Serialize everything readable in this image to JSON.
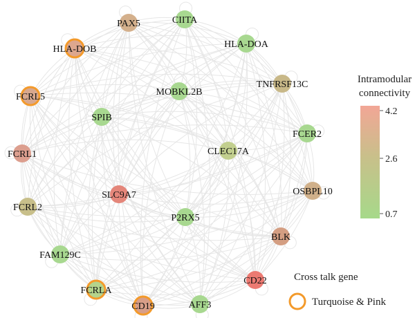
{
  "nodes": [
    {
      "id": "CIITA",
      "label": "CIITA",
      "value": 0.9,
      "cross_talk": false
    },
    {
      "id": "PAX5",
      "label": "PAX5",
      "value": 3.1,
      "cross_talk": false
    },
    {
      "id": "HLA-DOA",
      "label": "HLA-DOA",
      "value": 0.8,
      "cross_talk": false
    },
    {
      "id": "HLA-DOB",
      "label": "HLA-DOB",
      "value": 3.6,
      "cross_talk": true
    },
    {
      "id": "TNFRSF13C",
      "label": "TNFRSF13C",
      "value": 2.6,
      "cross_talk": false
    },
    {
      "id": "FCRL5",
      "label": "FCRL5",
      "value": 3.7,
      "cross_talk": true
    },
    {
      "id": "MOBKL2B",
      "label": "MOBKL2B",
      "value": 0.8,
      "cross_talk": false
    },
    {
      "id": "SPIB",
      "label": "SPIB",
      "value": 0.8,
      "cross_talk": false
    },
    {
      "id": "FCER2",
      "label": "FCER2",
      "value": 0.9,
      "cross_talk": false
    },
    {
      "id": "FCRL1",
      "label": "FCRL1",
      "value": 3.7,
      "cross_talk": false
    },
    {
      "id": "CLEC17A",
      "label": "CLEC17A",
      "value": 2.0,
      "cross_talk": false
    },
    {
      "id": "SLC9A7",
      "label": "SLC9A7",
      "value": 4.1,
      "cross_talk": false
    },
    {
      "id": "OSBPL10",
      "label": "OSBPL10",
      "value": 3.0,
      "cross_talk": false
    },
    {
      "id": "FCRL2",
      "label": "FCRL2",
      "value": 2.6,
      "cross_talk": false
    },
    {
      "id": "P2RX5",
      "label": "P2RX5",
      "value": 0.9,
      "cross_talk": false
    },
    {
      "id": "BLK",
      "label": "BLK",
      "value": 3.6,
      "cross_talk": false
    },
    {
      "id": "FAM129C",
      "label": "FAM129C",
      "value": 0.9,
      "cross_talk": false
    },
    {
      "id": "CD22",
      "label": "CD22",
      "value": 4.2,
      "cross_talk": false
    },
    {
      "id": "FCRLA",
      "label": "FCRLA",
      "value": 1.4,
      "cross_talk": true
    },
    {
      "id": "CD19",
      "label": "CD19",
      "value": 3.5,
      "cross_talk": true
    },
    {
      "id": "AFF3",
      "label": "AFF3",
      "value": 0.9,
      "cross_talk": false
    }
  ],
  "legend": {
    "title_line1": "Intramodular",
    "title_line2": "connectivity",
    "max_label": "4.2",
    "mid_label": "2.6",
    "min_label": "0.7",
    "scale_min": 0.7,
    "scale_max": 4.2,
    "color_low": "#a6d98a",
    "color_mid": "#c8c08a",
    "color_high": "#f2a696",
    "cross_talk_title": "Cross talk gene",
    "cross_talk_item": "Turquoise & Pink",
    "cross_talk_color": "#f39a2b"
  },
  "edge_color": "#e6e6e6"
}
